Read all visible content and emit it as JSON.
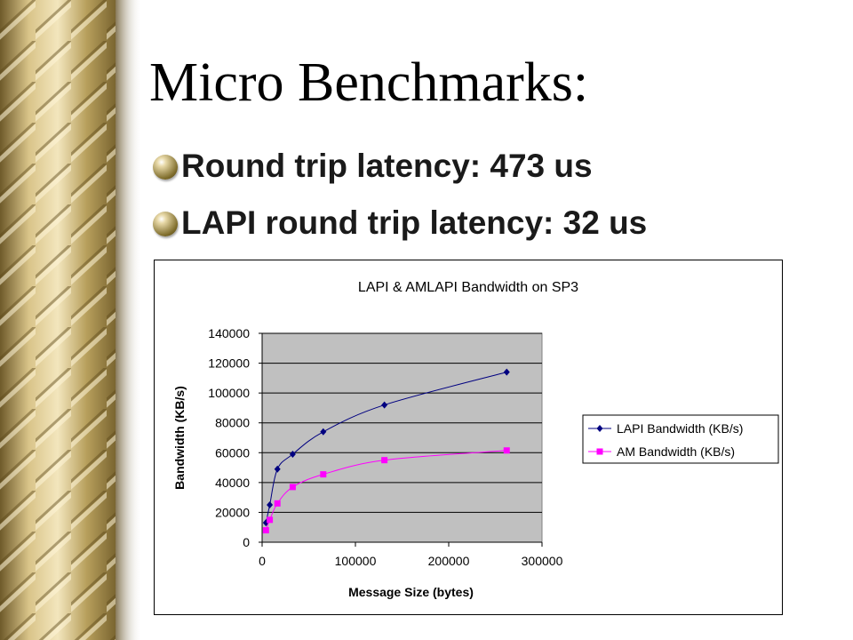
{
  "slide": {
    "title": "Micro Benchmarks:",
    "bullets": [
      "Round trip latency: 473 us",
      "LAPI round trip latency: 32 us"
    ]
  },
  "colors": {
    "lapi_series": "#000080",
    "am_series": "#FF00FF",
    "plot_area": "#C0C0C0"
  },
  "chart_data": {
    "type": "line",
    "title": "LAPI & AMLAPI Bandwidth on SP3",
    "xlabel": "Message Size (bytes)",
    "ylabel": "Bandwidth (KB/s)",
    "xlim": [
      0,
      300000
    ],
    "ylim": [
      0,
      140000
    ],
    "xticks": [
      0,
      100000,
      200000,
      300000
    ],
    "yticks": [
      0,
      20000,
      40000,
      60000,
      80000,
      100000,
      120000,
      140000
    ],
    "grid": "horizontal",
    "legend_position": "right",
    "series": [
      {
        "name": "LAPI Bandwidth (KB/s)",
        "marker": "diamond",
        "x": [
          4096,
          8192,
          16384,
          32768,
          65536,
          131072,
          262144
        ],
        "y": [
          13000,
          25000,
          49000,
          59000,
          74000,
          92000,
          114000
        ]
      },
      {
        "name": "AM Bandwidth (KB/s)",
        "marker": "square",
        "x": [
          4096,
          8192,
          16384,
          32768,
          65536,
          131072,
          262144
        ],
        "y": [
          8000,
          15000,
          26000,
          37000,
          45500,
          55000,
          61500
        ]
      }
    ]
  }
}
